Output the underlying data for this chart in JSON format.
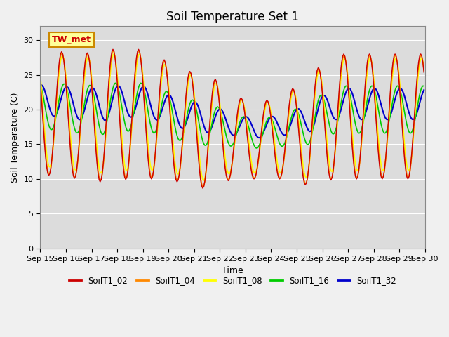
{
  "title": "Soil Temperature Set 1",
  "xlabel": "Time",
  "ylabel": "Soil Temperature (C)",
  "ylim": [
    0,
    32
  ],
  "yticks": [
    0,
    5,
    10,
    15,
    20,
    25,
    30
  ],
  "x_tick_labels": [
    "Sep 15",
    "Sep 16",
    "Sep 17",
    "Sep 18",
    "Sep 19",
    "Sep 20",
    "Sep 21",
    "Sep 22",
    "Sep 23",
    "Sep 24",
    "Sep 25",
    "Sep 26",
    "Sep 27",
    "Sep 28",
    "Sep 29",
    "Sep 30"
  ],
  "series_colors": {
    "SoilT1_02": "#cc0000",
    "SoilT1_04": "#ff8800",
    "SoilT1_08": "#ffff00",
    "SoilT1_16": "#00cc00",
    "SoilT1_32": "#0000cc"
  },
  "series_linewidths": {
    "SoilT1_02": 1.0,
    "SoilT1_04": 1.2,
    "SoilT1_08": 1.2,
    "SoilT1_16": 1.2,
    "SoilT1_32": 1.5
  },
  "legend_label": "TW_met",
  "legend_box_color": "#ffff99",
  "legend_box_edge": "#cc8800",
  "legend_text_color": "#cc0000",
  "plot_bg_color": "#dcdcdc",
  "fig_bg_color": "#f0f0f0",
  "grid_color": "#ffffff",
  "title_fontsize": 12,
  "axis_fontsize": 9,
  "tick_fontsize": 8
}
